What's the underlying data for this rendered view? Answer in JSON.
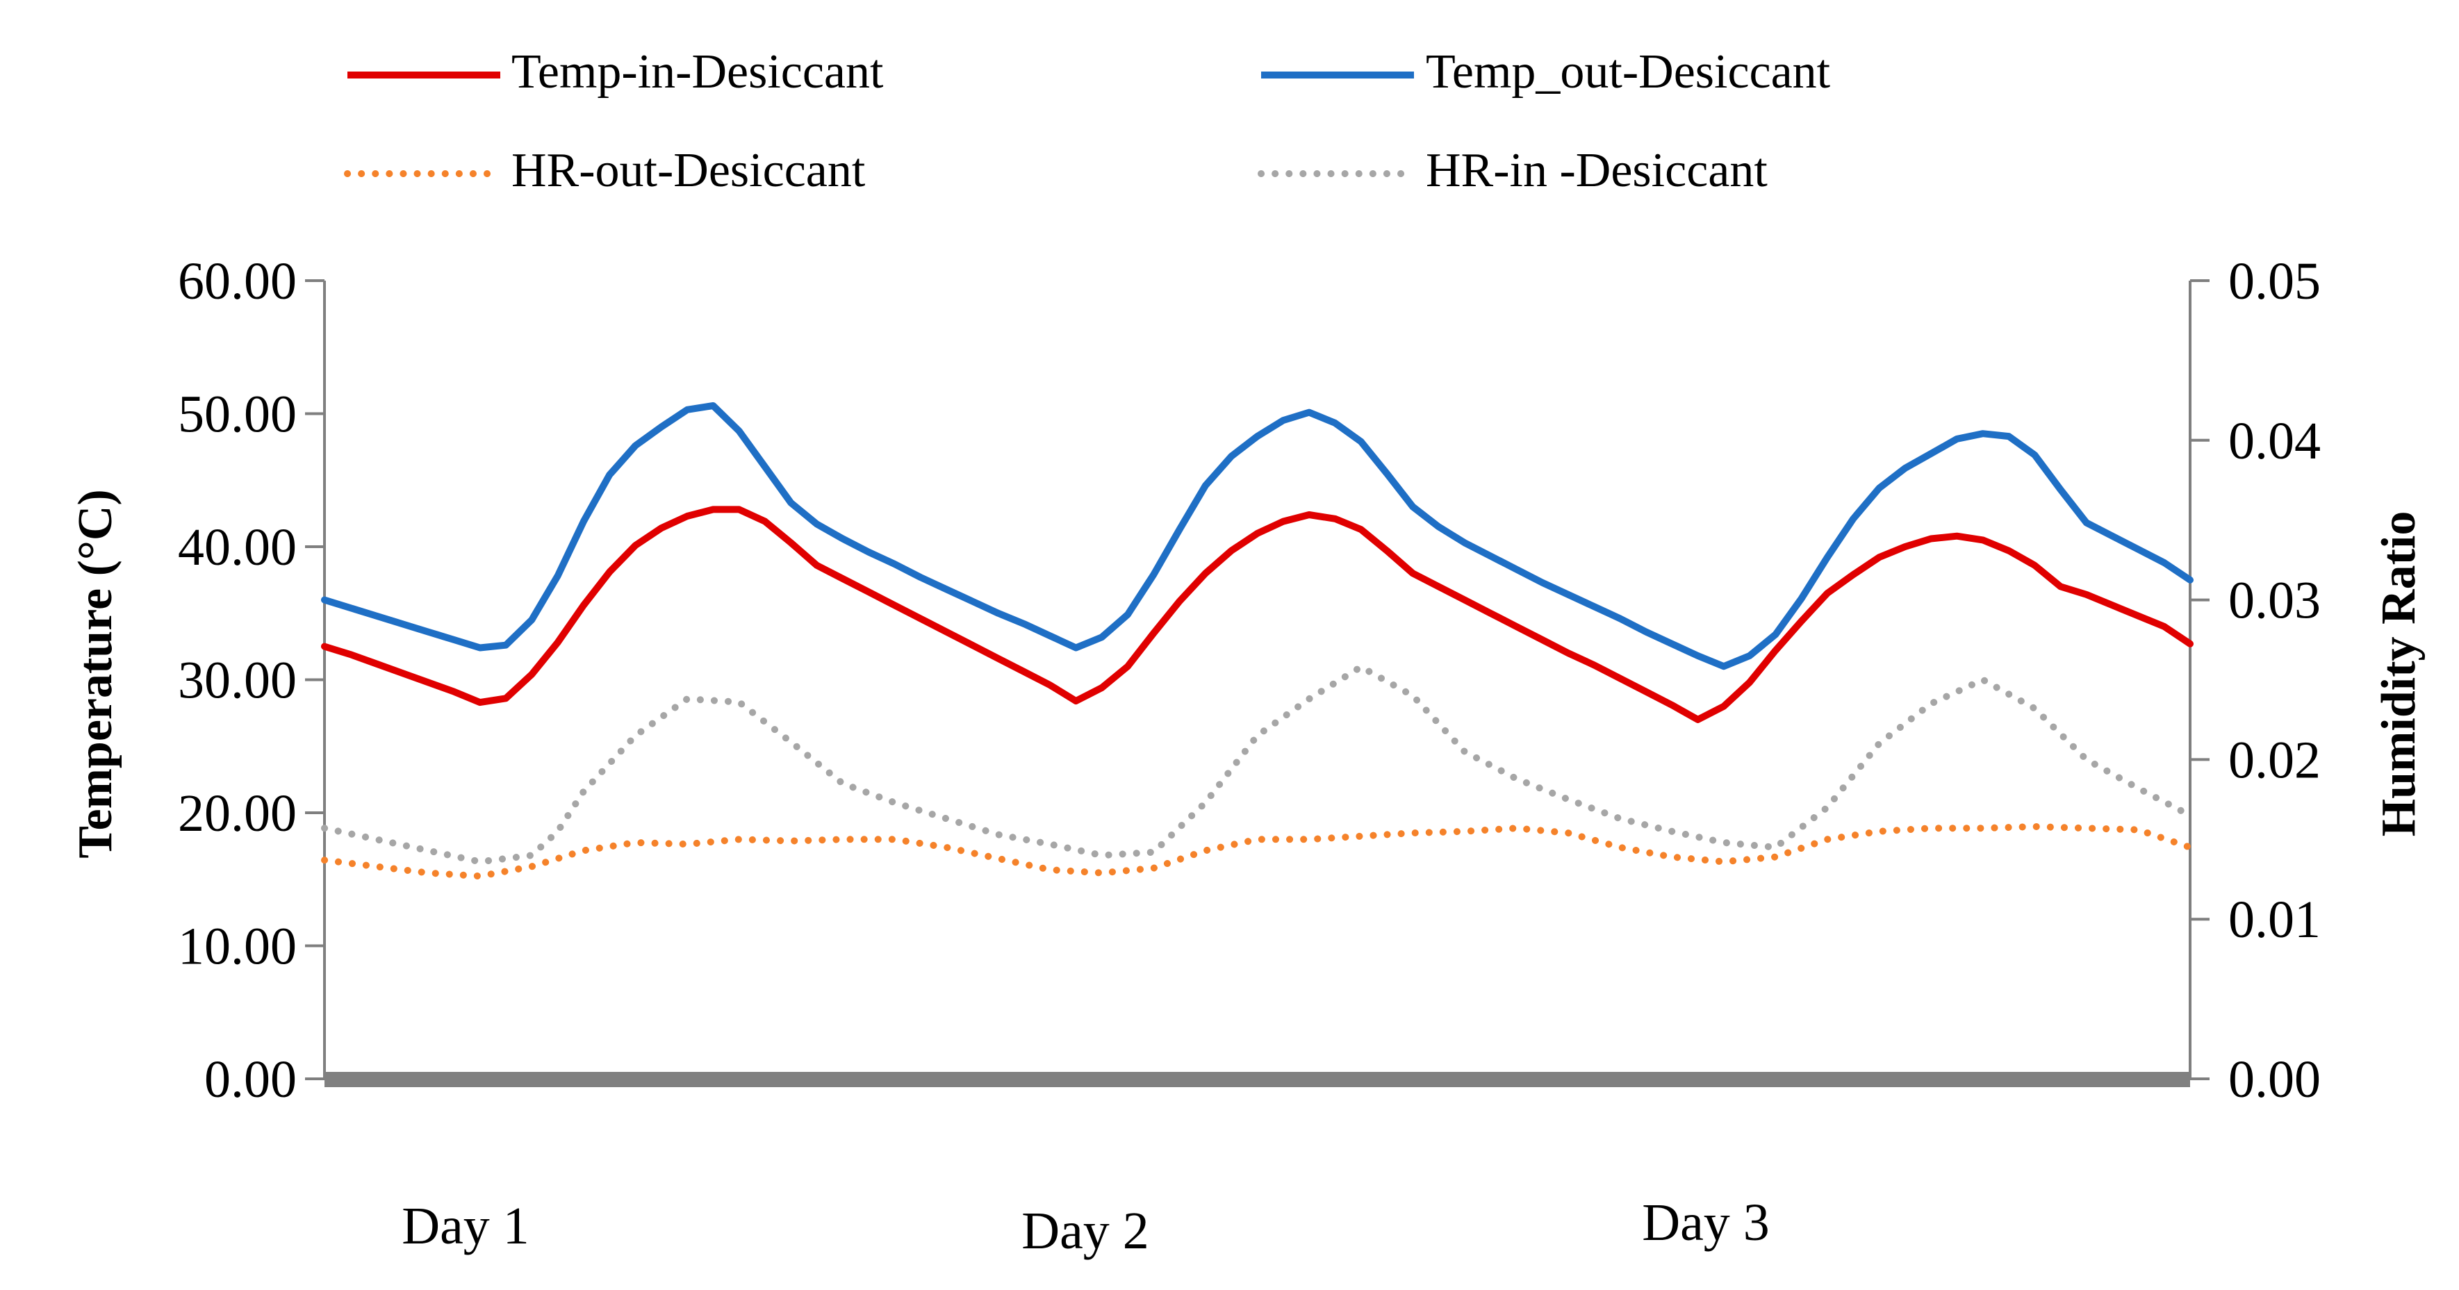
{
  "chart_data": {
    "type": "line",
    "title": "",
    "xlabel": "",
    "ylabel": "Temperature (°C)",
    "y2label": "Humidity Ratio",
    "ylim": [
      0,
      60
    ],
    "y2lim": [
      0,
      0.05
    ],
    "yticks": [
      "0.00",
      "10.00",
      "20.00",
      "30.00",
      "40.00",
      "50.00",
      "60.00"
    ],
    "y2ticks": [
      "0.00",
      "0.01",
      "0.02",
      "0.03",
      "0.04",
      "0.05"
    ],
    "day_labels": [
      "Day 1",
      "Day 2",
      "Day 3"
    ],
    "legend_position": "top",
    "colors": {
      "temp_in": "#e00000",
      "temp_out": "#1f6fc5",
      "hr_out": "#f5822a",
      "hr_in": "#a6a6a6",
      "axis": "#7f7f7f",
      "baseline": "#808080"
    },
    "series": [
      {
        "name": "Temp-in-Desiccant",
        "axis": "left",
        "style": "solid",
        "color_key": "temp_in",
        "x": [
          0,
          1,
          2,
          3,
          4,
          5,
          6,
          7,
          8,
          9,
          10,
          11,
          12,
          13,
          14,
          15,
          16,
          17,
          18,
          19,
          20,
          21,
          22,
          23,
          24,
          25,
          26,
          27,
          28,
          29,
          30,
          31,
          32,
          33,
          34,
          35,
          36,
          37,
          38,
          39,
          40,
          41,
          42,
          43,
          44,
          45,
          46,
          47,
          48,
          49,
          50,
          51,
          52,
          53,
          54,
          55,
          56,
          57,
          58,
          59,
          60,
          61,
          62,
          63,
          64,
          65,
          66,
          67,
          68,
          69,
          70,
          71,
          72
        ],
        "values": [
          32.5,
          31.9,
          31.2,
          30.5,
          29.8,
          29.1,
          28.3,
          28.6,
          30.4,
          32.8,
          35.6,
          38.1,
          40.1,
          41.4,
          42.3,
          42.8,
          42.8,
          41.9,
          40.3,
          38.6,
          37.6,
          36.6,
          35.6,
          34.6,
          33.6,
          32.6,
          31.6,
          30.6,
          29.6,
          28.4,
          29.4,
          31.0,
          33.5,
          35.9,
          38.0,
          39.7,
          41.0,
          41.9,
          42.4,
          42.1,
          41.3,
          39.7,
          38.0,
          37.0,
          36.0,
          35.0,
          34.0,
          33.0,
          32.0,
          31.1,
          30.1,
          29.1,
          28.1,
          27.0,
          28.0,
          29.8,
          32.2,
          34.4,
          36.5,
          37.9,
          39.2,
          40.0,
          40.6,
          40.8,
          40.5,
          39.7,
          38.6,
          37.0,
          36.4,
          35.6,
          34.8,
          34.0,
          32.7
        ]
      },
      {
        "name": "Temp_out-Desiccant",
        "axis": "left",
        "style": "solid",
        "color_key": "temp_out",
        "x": [
          0,
          1,
          2,
          3,
          4,
          5,
          6,
          7,
          8,
          9,
          10,
          11,
          12,
          13,
          14,
          15,
          16,
          17,
          18,
          19,
          20,
          21,
          22,
          23,
          24,
          25,
          26,
          27,
          28,
          29,
          30,
          31,
          32,
          33,
          34,
          35,
          36,
          37,
          38,
          39,
          40,
          41,
          42,
          43,
          44,
          45,
          46,
          47,
          48,
          49,
          50,
          51,
          52,
          53,
          54,
          55,
          56,
          57,
          58,
          59,
          60,
          61,
          62,
          63,
          64,
          65,
          66,
          67,
          68,
          69,
          70,
          71,
          72
        ],
        "values": [
          36.0,
          35.4,
          34.8,
          34.2,
          33.6,
          33.0,
          32.4,
          32.6,
          34.5,
          37.8,
          41.9,
          45.4,
          47.6,
          49.0,
          50.3,
          50.6,
          48.7,
          46.0,
          43.3,
          41.7,
          40.6,
          39.6,
          38.7,
          37.7,
          36.8,
          35.9,
          35.0,
          34.2,
          33.3,
          32.4,
          33.2,
          34.9,
          37.9,
          41.3,
          44.6,
          46.8,
          48.3,
          49.5,
          50.1,
          49.3,
          47.9,
          45.5,
          43.0,
          41.5,
          40.3,
          39.3,
          38.3,
          37.3,
          36.4,
          35.5,
          34.6,
          33.6,
          32.7,
          31.8,
          31.0,
          31.8,
          33.4,
          36.1,
          39.2,
          42.1,
          44.4,
          45.9,
          47.0,
          48.1,
          48.5,
          48.3,
          46.9,
          44.3,
          41.8,
          40.8,
          39.8,
          38.8,
          37.5
        ]
      },
      {
        "name": "HR-out-Desiccant",
        "axis": "right",
        "style": "dotted",
        "color_key": "hr_out",
        "x": [
          0,
          2,
          4,
          6,
          8,
          10,
          12,
          14,
          16,
          18,
          20,
          22,
          24,
          26,
          28,
          30,
          32,
          34,
          36,
          38,
          40,
          42,
          44,
          46,
          48,
          50,
          52,
          54,
          56,
          58,
          60,
          62,
          64,
          66,
          68,
          70,
          72
        ],
        "values": [
          0.0137,
          0.0133,
          0.0129,
          0.0127,
          0.0133,
          0.0143,
          0.0148,
          0.0147,
          0.015,
          0.0149,
          0.015,
          0.015,
          0.0145,
          0.0138,
          0.0131,
          0.0129,
          0.0132,
          0.0143,
          0.015,
          0.015,
          0.0152,
          0.0154,
          0.0155,
          0.0157,
          0.0154,
          0.0145,
          0.0139,
          0.0136,
          0.0139,
          0.015,
          0.0155,
          0.0157,
          0.0157,
          0.0158,
          0.0157,
          0.0156,
          0.0145
        ]
      },
      {
        "name": "HR-in -Desiccant",
        "axis": "right",
        "style": "dotted",
        "color_key": "hr_in",
        "x": [
          0,
          2,
          4,
          6,
          8,
          9,
          10,
          12,
          14,
          16,
          18,
          20,
          22,
          24,
          26,
          28,
          30,
          32,
          34,
          36,
          38,
          40,
          42,
          44,
          46,
          48,
          50,
          52,
          54,
          56,
          58,
          60,
          62,
          64,
          66,
          68,
          70,
          72
        ],
        "values": [
          0.0157,
          0.015,
          0.0143,
          0.0136,
          0.014,
          0.0155,
          0.018,
          0.0215,
          0.0238,
          0.0236,
          0.0211,
          0.0185,
          0.0173,
          0.0163,
          0.0153,
          0.0147,
          0.014,
          0.0142,
          0.0173,
          0.0215,
          0.0238,
          0.0258,
          0.024,
          0.0205,
          0.0188,
          0.0175,
          0.0163,
          0.0155,
          0.0148,
          0.0145,
          0.017,
          0.021,
          0.0235,
          0.025,
          0.0232,
          0.02,
          0.0182,
          0.0165
        ]
      }
    ]
  }
}
